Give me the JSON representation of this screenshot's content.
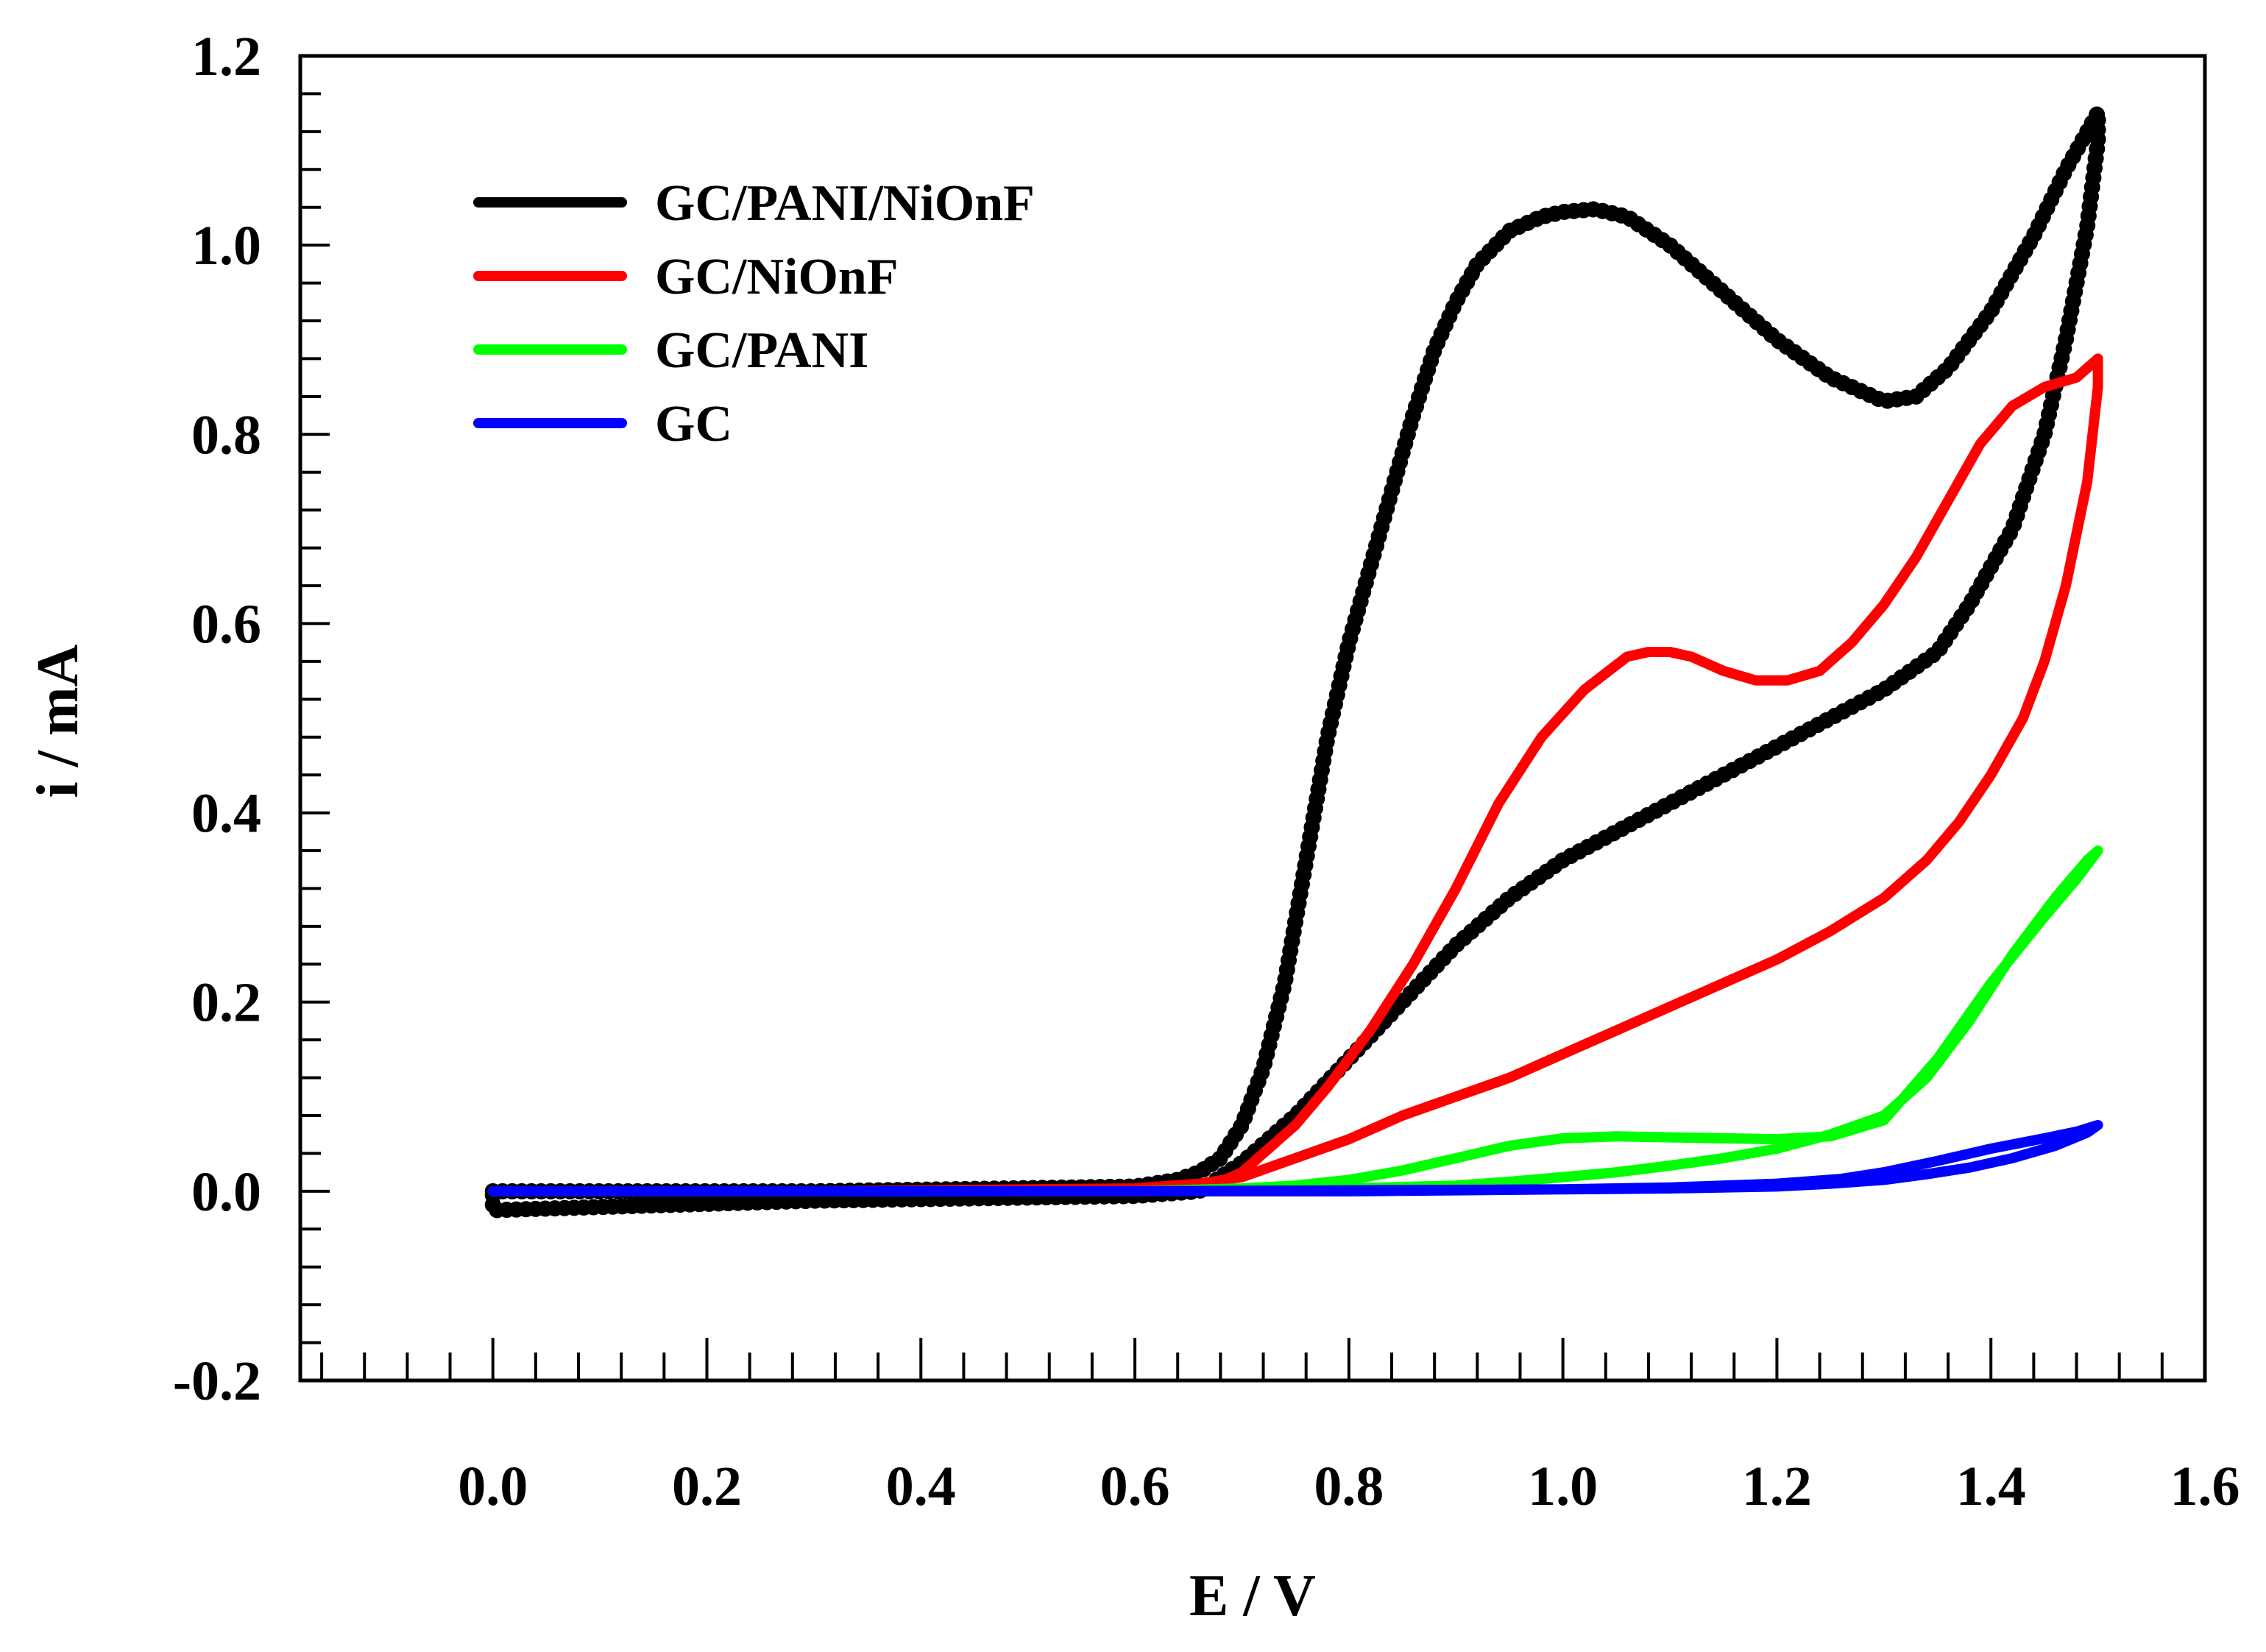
{
  "chart_data": {
    "type": "line",
    "title": "",
    "xlabel": "E / V",
    "ylabel": "i / mA",
    "xlim": [
      -0.18,
      1.6
    ],
    "ylim": [
      -0.2,
      1.2
    ],
    "xticks": [
      0.0,
      0.2,
      0.4,
      0.6,
      0.8,
      1.0,
      1.2,
      1.4,
      1.6
    ],
    "xtick_labels": [
      "0.0",
      "0.2",
      "0.4",
      "0.6",
      "0.8",
      "1.0",
      "1.2",
      "1.4",
      "1.6"
    ],
    "yticks": [
      -0.2,
      0.0,
      0.2,
      0.4,
      0.6,
      0.8,
      1.0,
      1.2
    ],
    "ytick_labels": [
      "-0.2",
      "0.0",
      "0.2",
      "0.4",
      "0.6",
      "0.8",
      "1.0",
      "1.2"
    ],
    "x_minor_step": 0.04,
    "y_minor_step": 0.04,
    "grid": false,
    "legend_position": "top-left",
    "series": [
      {
        "name": "GC/PANI/NiOnF",
        "color": "#000000",
        "x": [
          0.0,
          0.3,
          0.6,
          0.64,
          0.66,
          0.68,
          0.7,
          0.72,
          0.74,
          0.76,
          0.78,
          0.8,
          0.82,
          0.84,
          0.86,
          0.88,
          0.9,
          0.92,
          0.95,
          0.98,
          1.0,
          1.03,
          1.06,
          1.1,
          1.15,
          1.2,
          1.25,
          1.3,
          1.33,
          1.36,
          1.4,
          1.44,
          1.47,
          1.49,
          1.5,
          1.5,
          1.49,
          1.47,
          1.45,
          1.42,
          1.38,
          1.35,
          1.3,
          1.25,
          1.2,
          1.15,
          1.1,
          1.05,
          1.0,
          0.95,
          0.9,
          0.85,
          0.8,
          0.75,
          0.7,
          0.68,
          0.66,
          0.6,
          0.3,
          0.0,
          0.0
        ],
        "y": [
          0.0,
          0.0,
          0.005,
          0.012,
          0.02,
          0.035,
          0.07,
          0.13,
          0.22,
          0.35,
          0.48,
          0.58,
          0.66,
          0.74,
          0.82,
          0.89,
          0.94,
          0.98,
          1.015,
          1.03,
          1.035,
          1.038,
          1.03,
          1.0,
          0.95,
          0.9,
          0.86,
          0.835,
          0.84,
          0.87,
          0.93,
          1.01,
          1.08,
          1.12,
          1.14,
          1.11,
          1.02,
          0.9,
          0.8,
          0.7,
          0.62,
          0.57,
          0.53,
          0.5,
          0.47,
          0.44,
          0.41,
          0.38,
          0.35,
          0.31,
          0.26,
          0.2,
          0.14,
          0.08,
          0.03,
          0.015,
          0.0,
          -0.005,
          -0.01,
          -0.02,
          0.0
        ]
      },
      {
        "name": "GC/NiOnF",
        "color": "#ff0000",
        "x": [
          0.0,
          0.3,
          0.6,
          0.66,
          0.68,
          0.7,
          0.72,
          0.75,
          0.78,
          0.82,
          0.86,
          0.9,
          0.94,
          0.98,
          1.02,
          1.06,
          1.08,
          1.1,
          1.12,
          1.15,
          1.18,
          1.21,
          1.24,
          1.27,
          1.3,
          1.33,
          1.36,
          1.39,
          1.42,
          1.45,
          1.48,
          1.5,
          1.5,
          1.49,
          1.47,
          1.45,
          1.43,
          1.4,
          1.37,
          1.34,
          1.3,
          1.25,
          1.2,
          1.15,
          1.1,
          1.05,
          1.0,
          0.95,
          0.9,
          0.85,
          0.8,
          0.75,
          0.7,
          0.66,
          0.6,
          0.3,
          0.0
        ],
        "y": [
          0.0,
          0.0,
          0.002,
          0.005,
          0.01,
          0.02,
          0.04,
          0.07,
          0.11,
          0.17,
          0.24,
          0.32,
          0.41,
          0.48,
          0.53,
          0.565,
          0.57,
          0.57,
          0.565,
          0.55,
          0.54,
          0.54,
          0.55,
          0.58,
          0.62,
          0.67,
          0.73,
          0.79,
          0.83,
          0.85,
          0.86,
          0.88,
          0.85,
          0.75,
          0.64,
          0.56,
          0.5,
          0.44,
          0.39,
          0.35,
          0.31,
          0.275,
          0.245,
          0.22,
          0.195,
          0.17,
          0.145,
          0.12,
          0.1,
          0.08,
          0.055,
          0.035,
          0.015,
          0.008,
          0.003,
          0.0,
          0.0
        ]
      },
      {
        "name": "GC/PANI",
        "color": "#00ff00",
        "x": [
          0.0,
          0.3,
          0.6,
          0.7,
          0.75,
          0.8,
          0.85,
          0.9,
          0.95,
          1.0,
          1.05,
          1.1,
          1.15,
          1.2,
          1.25,
          1.3,
          1.35,
          1.4,
          1.45,
          1.48,
          1.5,
          1.49,
          1.46,
          1.42,
          1.38,
          1.34,
          1.3,
          1.25,
          1.2,
          1.15,
          1.1,
          1.05,
          1.0,
          0.95,
          0.9,
          0.8,
          0.7,
          0.6,
          0.3,
          0.0
        ],
        "y": [
          0.0,
          0.0,
          0.0,
          0.003,
          0.006,
          0.012,
          0.022,
          0.035,
          0.048,
          0.056,
          0.058,
          0.057,
          0.056,
          0.055,
          0.058,
          0.075,
          0.14,
          0.22,
          0.29,
          0.33,
          0.36,
          0.35,
          0.31,
          0.25,
          0.18,
          0.12,
          0.08,
          0.06,
          0.045,
          0.035,
          0.027,
          0.02,
          0.015,
          0.01,
          0.006,
          0.003,
          0.001,
          0.0,
          0.0,
          0.0
        ]
      },
      {
        "name": "GC",
        "color": "#0000ff",
        "x": [
          0.0,
          0.3,
          0.6,
          0.8,
          1.0,
          1.1,
          1.2,
          1.26,
          1.3,
          1.35,
          1.4,
          1.45,
          1.48,
          1.5,
          1.49,
          1.46,
          1.42,
          1.38,
          1.34,
          1.3,
          1.25,
          1.2,
          1.1,
          1.0,
          0.8,
          0.6,
          0.3,
          0.0
        ],
        "y": [
          0.0,
          0.0,
          0.0,
          0.0,
          0.002,
          0.004,
          0.008,
          0.013,
          0.02,
          0.032,
          0.045,
          0.056,
          0.063,
          0.07,
          0.062,
          0.048,
          0.035,
          0.025,
          0.018,
          0.012,
          0.008,
          0.005,
          0.003,
          0.002,
          0.001,
          0.0,
          0.0,
          0.0
        ]
      }
    ]
  }
}
